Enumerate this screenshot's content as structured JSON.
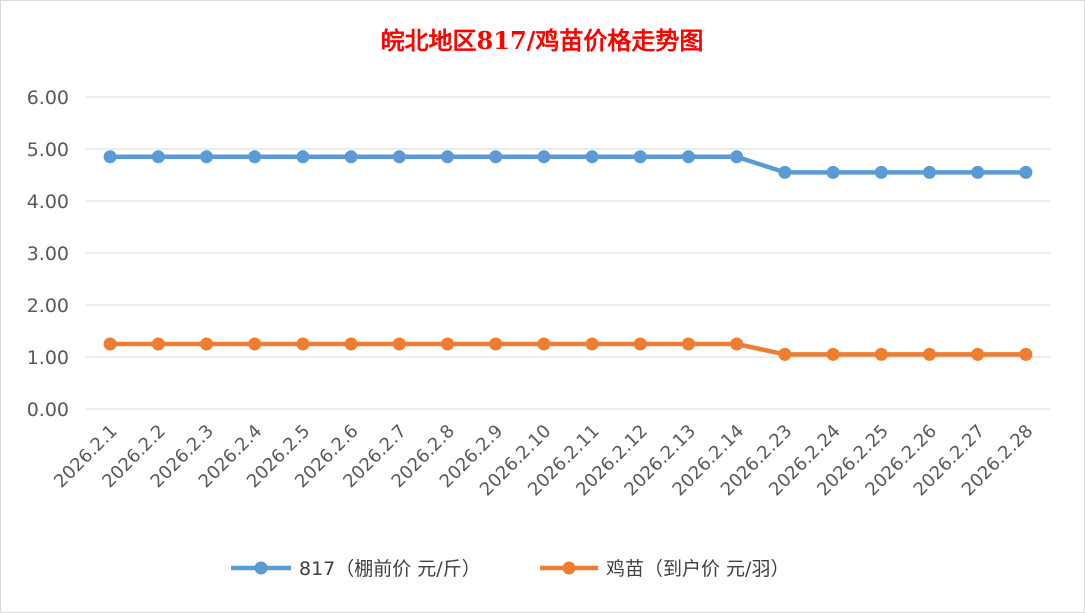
{
  "chart_data": {
    "type": "line",
    "title": "皖北地区817/鸡苗价格走势图",
    "title_color": "#ff0000",
    "categories": [
      "2026.2.1",
      "2026.2.2",
      "2026.2.3",
      "2026.2.4",
      "2026.2.5",
      "2026.2.6",
      "2026.2.7",
      "2026.2.8",
      "2026.2.9",
      "2026.2.10",
      "2026.2.11",
      "2026.2.12",
      "2026.2.13",
      "2026.2.14",
      "2026.2.23",
      "2026.2.24",
      "2026.2.25",
      "2026.2.26",
      "2026.2.27",
      "2026.2.28"
    ],
    "series": [
      {
        "name": "817（棚前价 元/斤）",
        "color": "#5b9bd5",
        "values": [
          4.85,
          4.85,
          4.85,
          4.85,
          4.85,
          4.85,
          4.85,
          4.85,
          4.85,
          4.85,
          4.85,
          4.85,
          4.85,
          4.85,
          4.55,
          4.55,
          4.55,
          4.55,
          4.55,
          4.55
        ]
      },
      {
        "name": "鸡苗（到户价 元/羽）",
        "color": "#ed7d31",
        "values": [
          1.25,
          1.25,
          1.25,
          1.25,
          1.25,
          1.25,
          1.25,
          1.25,
          1.25,
          1.25,
          1.25,
          1.25,
          1.25,
          1.25,
          1.05,
          1.05,
          1.05,
          1.05,
          1.05,
          1.05
        ]
      }
    ],
    "yticks": [
      "0.00",
      "1.00",
      "2.00",
      "3.00",
      "4.00",
      "5.00",
      "6.00"
    ],
    "ylim": [
      0,
      6
    ],
    "grid": true,
    "legend_position": "bottom"
  }
}
